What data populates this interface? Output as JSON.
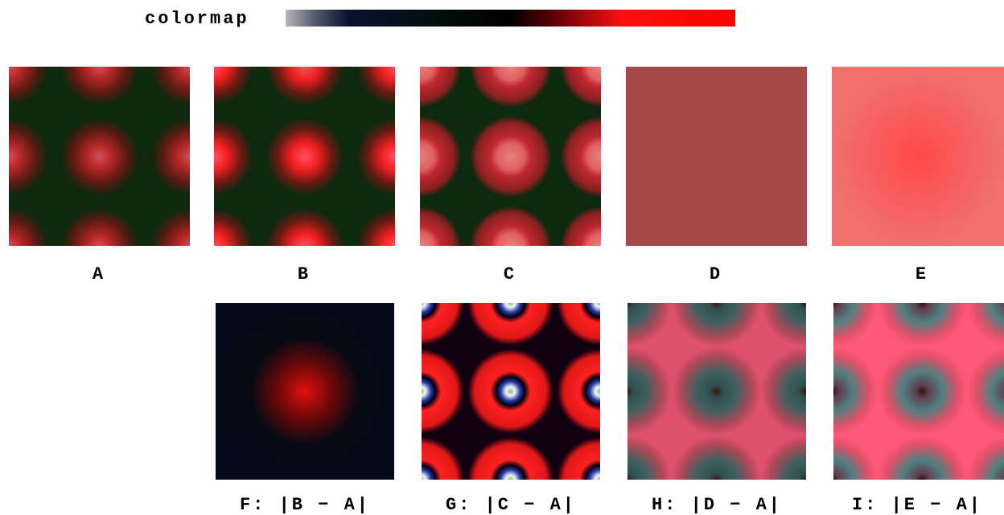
{
  "colormap": {
    "label": "colormap"
  },
  "panels": [
    {
      "label": "A"
    },
    {
      "label": "B"
    },
    {
      "label": "C"
    },
    {
      "label": "D"
    },
    {
      "label": "E"
    },
    {
      "label": "F: |B − A|"
    },
    {
      "label": "G: |C − A|"
    },
    {
      "label": "H: |D − A|"
    },
    {
      "label": "I: |E − A|"
    }
  ]
}
